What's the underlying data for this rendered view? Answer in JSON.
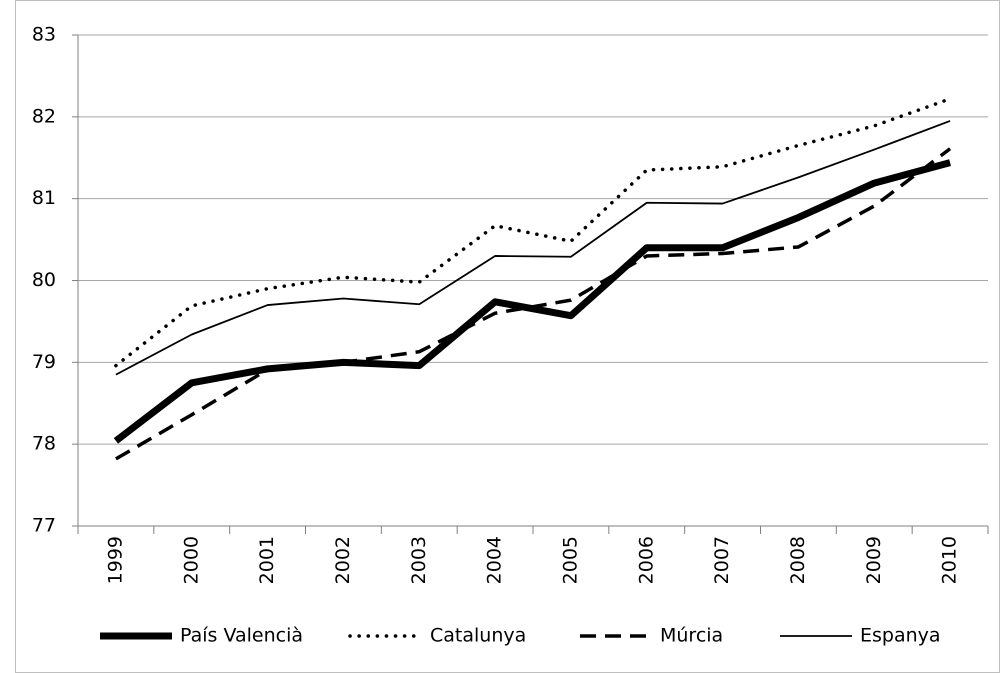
{
  "chart_data": {
    "type": "line",
    "categories": [
      "1999",
      "2000",
      "2001",
      "2002",
      "2003",
      "2004",
      "2005",
      "2006",
      "2007",
      "2008",
      "2009",
      "2010"
    ],
    "series": [
      {
        "name": "País Valencià",
        "color": "#000000",
        "style": "thick",
        "values": [
          78.04,
          78.75,
          78.92,
          79.0,
          78.96,
          79.74,
          79.57,
          80.4,
          80.4,
          80.77,
          81.19,
          81.44
        ]
      },
      {
        "name": "Catalunya",
        "color": "#000000",
        "style": "dotted",
        "values": [
          78.96,
          79.69,
          79.9,
          80.04,
          79.98,
          80.67,
          80.48,
          81.35,
          81.39,
          81.65,
          81.89,
          82.22
        ]
      },
      {
        "name": "Múrcia",
        "color": "#000000",
        "style": "dashed",
        "values": [
          77.82,
          78.36,
          78.91,
          79.0,
          79.13,
          79.6,
          79.76,
          80.3,
          80.33,
          80.41,
          80.91,
          81.61
        ]
      },
      {
        "name": "Espanya",
        "color": "#000000",
        "style": "thin",
        "values": [
          78.85,
          79.34,
          79.7,
          79.78,
          79.71,
          80.3,
          80.29,
          80.95,
          80.94,
          81.26,
          81.6,
          81.95
        ]
      }
    ],
    "ylim": [
      77,
      83
    ],
    "yticks": [
      77,
      78,
      79,
      80,
      81,
      82,
      83
    ],
    "grid": true,
    "legend": "bottom"
  }
}
